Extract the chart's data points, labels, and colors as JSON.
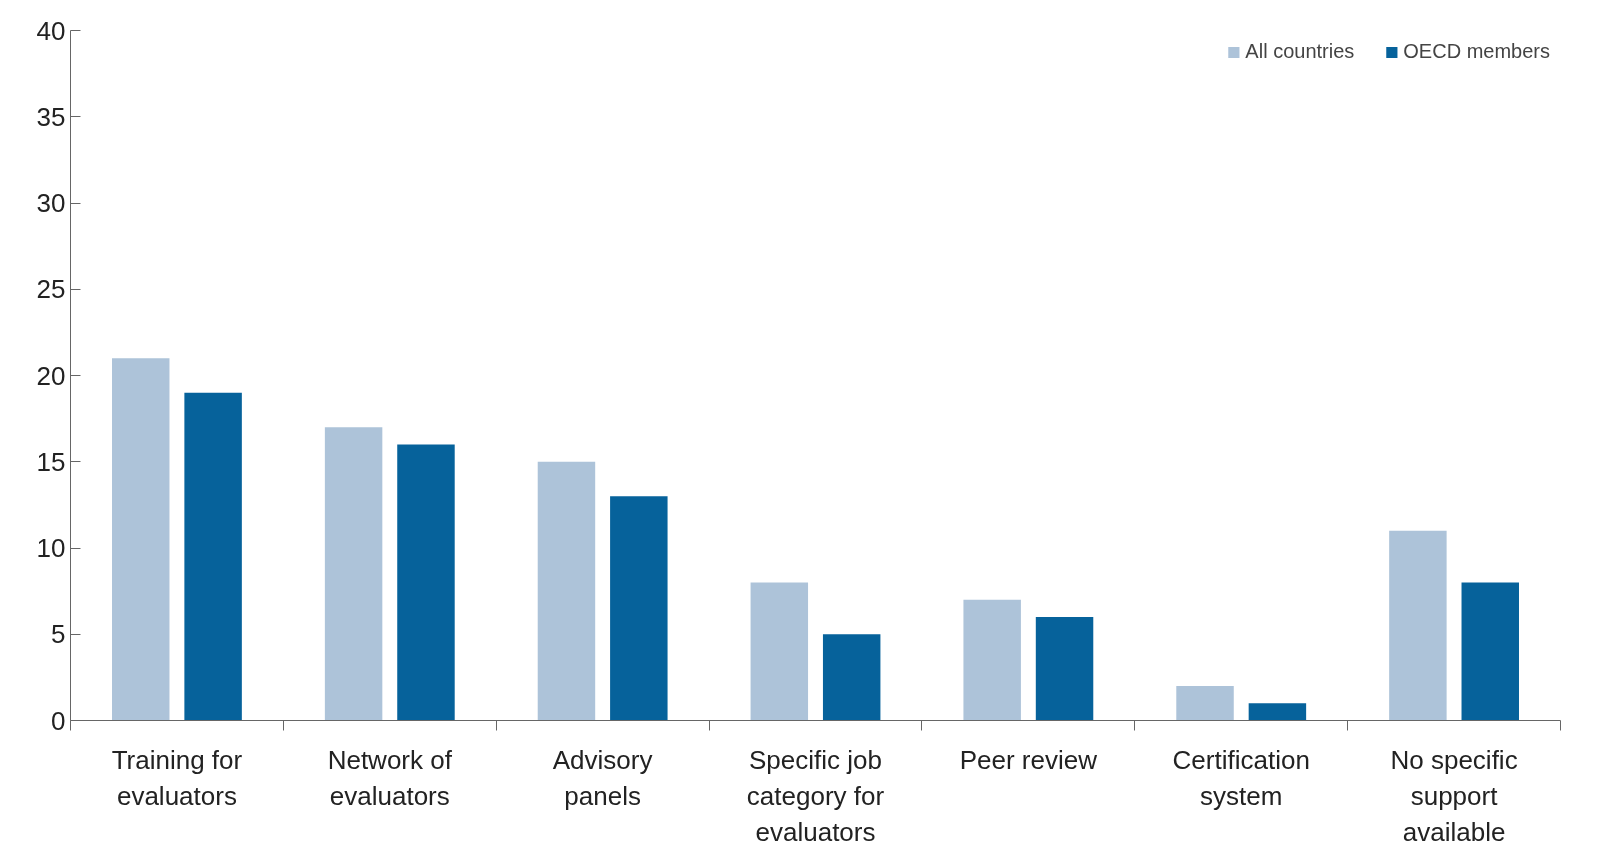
{
  "chart_data": {
    "type": "bar",
    "categories": [
      "Training for evaluators",
      "Network of evaluators",
      "Advisory panels",
      "Specific job category for evaluators",
      "Peer review",
      "Certification system",
      "No specific support available"
    ],
    "series": [
      {
        "name": "All countries",
        "color": "#adc3d9",
        "values": [
          21,
          17,
          15,
          8,
          7,
          2,
          11
        ]
      },
      {
        "name": "OECD members",
        "color": "#06629b",
        "values": [
          19,
          16,
          13,
          5,
          6,
          1,
          8
        ]
      }
    ],
    "ylim": [
      0,
      40
    ],
    "yticks": [
      0,
      5,
      10,
      15,
      20,
      25,
      30,
      35,
      40
    ],
    "grid": false,
    "legend": "top right"
  }
}
